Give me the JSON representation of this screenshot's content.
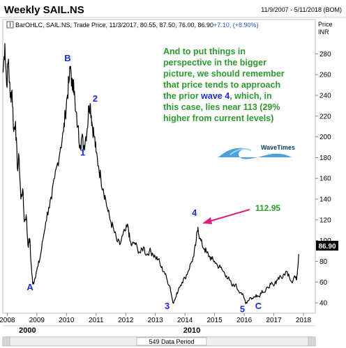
{
  "title": "Weekly SAIL.NS",
  "date_range": "11/9/2007 - 5/11/2018 (BOM)",
  "legend": {
    "prefix": "BarOHLC, SAIL.NS, Trade Price, 11/3/2017, 80.55, 87.50, 76.00, 86.90",
    "change": "+7.10, (+8.90%)"
  },
  "axis_unit_line1": "Price",
  "axis_unit_line2": "INR",
  "last_price_label": "86.90",
  "footer": "549 Data Period",
  "annotation": {
    "lines": [
      "And to put things in",
      "perspective in the bigger",
      "picture, we should remember",
      "that price tends to approach",
      "the prior wave 4, which, in",
      "this case, lies near 113 (29%",
      "higher from current levels)"
    ],
    "arrow_label": "112.95",
    "color": "#2e9a2e"
  },
  "logo_text": "WaveTimes",
  "colors": {
    "price": "#000000",
    "wave_label": "#1a2bd6",
    "arrow": "#e0207a",
    "change": "#2255cc",
    "annotation": "#2e9a2e"
  },
  "chart_data": {
    "type": "line",
    "title": "Weekly SAIL.NS",
    "ylabel": "Price INR",
    "ylim": [
      30,
      295
    ],
    "y_ticks": [
      40,
      60,
      80,
      100,
      120,
      140,
      160,
      180,
      200,
      220,
      240,
      260,
      280
    ],
    "xlim": [
      2007.85,
      2018.4
    ],
    "x_ticks": [
      2008,
      2009,
      2010,
      2011,
      2012,
      2013,
      2014,
      2015,
      2016,
      2017,
      2018
    ],
    "x_ticks_secondary": [
      2000,
      2010
    ],
    "last_value": 86.9,
    "series": [
      {
        "x": [
          2007.86,
          2007.92,
          2007.98,
          2008.04,
          2008.1,
          2008.16,
          2008.22,
          2008.28,
          2008.34,
          2008.4,
          2008.46,
          2008.52,
          2008.58,
          2008.64,
          2008.7,
          2008.76,
          2008.8,
          2008.86,
          2008.92,
          2008.98,
          2009.04,
          2009.12,
          2009.2,
          2009.3,
          2009.4,
          2009.5,
          2009.6,
          2009.7,
          2009.8,
          2009.9,
          2009.96,
          2010.02,
          2010.08,
          2010.14,
          2010.2,
          2010.24,
          2010.3,
          2010.38,
          2010.46,
          2010.52,
          2010.58,
          2010.64,
          2010.7,
          2010.76,
          2010.8,
          2010.84,
          2010.88,
          2010.94,
          2011.0,
          2011.08,
          2011.16,
          2011.24,
          2011.32,
          2011.4,
          2011.5,
          2011.6,
          2011.7,
          2011.8,
          2011.9,
          2012.0,
          2012.08,
          2012.14,
          2012.2,
          2012.3,
          2012.4,
          2012.5,
          2012.6,
          2012.7,
          2012.8,
          2012.9,
          2013.0,
          2013.1,
          2013.2,
          2013.3,
          2013.4,
          2013.5,
          2013.56,
          2013.62,
          2013.7,
          2013.8,
          2013.9,
          2014.0,
          2014.1,
          2014.2,
          2014.3,
          2014.38,
          2014.44,
          2014.5,
          2014.58,
          2014.66,
          2014.74,
          2014.82,
          2014.9,
          2015.0,
          2015.1,
          2015.2,
          2015.3,
          2015.4,
          2015.5,
          2015.6,
          2015.7,
          2015.8,
          2015.9,
          2016.0,
          2016.06,
          2016.12,
          2016.2,
          2016.3,
          2016.4,
          2016.5,
          2016.6,
          2016.7,
          2016.8,
          2016.9,
          2017.0,
          2017.1,
          2017.2,
          2017.3,
          2017.4,
          2017.5,
          2017.6,
          2017.7,
          2017.76,
          2017.8,
          2017.84
        ],
        "y": [
          262,
          290,
          250,
          275,
          238,
          245,
          205,
          215,
          170,
          180,
          140,
          150,
          118,
          125,
          95,
          102,
          80,
          58,
          62,
          70,
          75,
          85,
          100,
          118,
          132,
          140,
          160,
          175,
          190,
          205,
          222,
          238,
          252,
          268,
          245,
          255,
          225,
          210,
          192,
          200,
          190,
          198,
          208,
          230,
          232,
          220,
          210,
          200,
          185,
          172,
          160,
          150,
          140,
          128,
          118,
          110,
          100,
          96,
          105,
          110,
          114,
          100,
          95,
          98,
          92,
          88,
          94,
          86,
          90,
          88,
          84,
          82,
          74,
          70,
          62,
          55,
          45,
          40,
          46,
          55,
          60,
          64,
          70,
          78,
          85,
          100,
          113,
          102,
          96,
          92,
          88,
          85,
          82,
          80,
          76,
          74,
          70,
          66,
          62,
          56,
          58,
          52,
          50,
          44,
          40,
          42,
          45,
          44,
          48,
          46,
          52,
          50,
          55,
          58,
          56,
          62,
          66,
          64,
          70,
          68,
          60,
          66,
          62,
          72,
          87
        ]
      }
    ],
    "wave_labels": [
      {
        "text": "A",
        "x": 2008.77,
        "y": 52
      },
      {
        "text": "B",
        "x": 2010.04,
        "y": 273
      },
      {
        "text": "1",
        "x": 2010.55,
        "y": 182
      },
      {
        "text": "2",
        "x": 2010.97,
        "y": 234
      },
      {
        "text": "3",
        "x": 2013.4,
        "y": 34
      },
      {
        "text": "4",
        "x": 2014.32,
        "y": 124
      },
      {
        "text": "5",
        "x": 2015.94,
        "y": 31
      },
      {
        "text": "C",
        "x": 2016.48,
        "y": 34
      }
    ]
  }
}
